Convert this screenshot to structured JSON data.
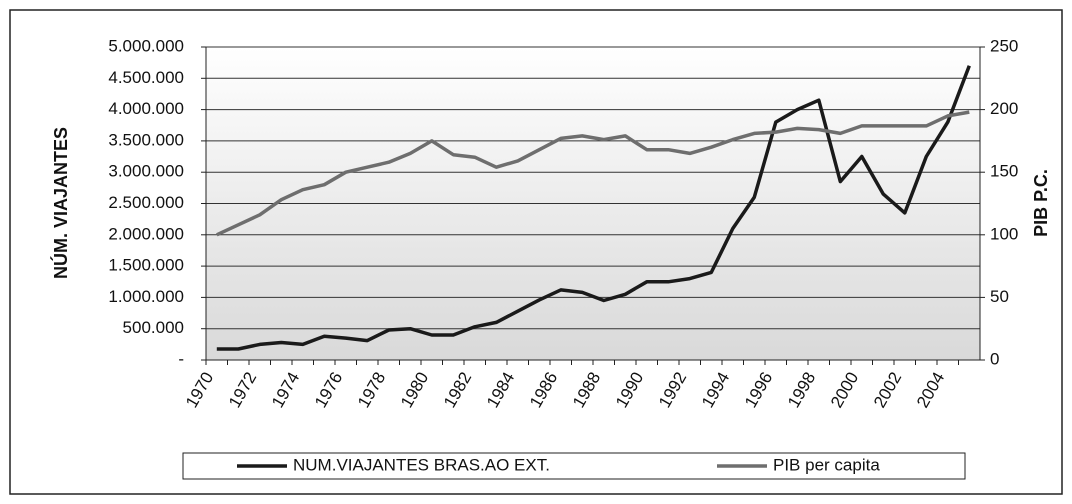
{
  "chart_data": {
    "type": "line",
    "categories": [
      "1970",
      null,
      "1972",
      null,
      "1974",
      null,
      "1976",
      null,
      "1978",
      null,
      "1980",
      null,
      "1982",
      null,
      "1984",
      null,
      "1986",
      null,
      "1988",
      null,
      "1990",
      null,
      "1992",
      null,
      "1994",
      null,
      "1996",
      null,
      "1998",
      null,
      "2000",
      null,
      "2002",
      null,
      "2004",
      null
    ],
    "series": [
      {
        "name": "NUM.VIAJANTES BRAS.AO EXT.",
        "color": "#1a1a1a",
        "values": [
          175000,
          175000,
          250000,
          280000,
          250000,
          380000,
          350000,
          310000,
          480000,
          500000,
          400000,
          400000,
          530000,
          600000,
          780000,
          960000,
          1120000,
          1080000,
          950000,
          1050000,
          1250000,
          1250000,
          1300000,
          1400000,
          2100000,
          2600000,
          3800000,
          4000000,
          4150000,
          2850000,
          3250000,
          2650000,
          2350000,
          3250000,
          3800000,
          4700000
        ]
      },
      {
        "name": "PIB per capita",
        "color": "#6e6e6e",
        "axis": "y2",
        "values": [
          100,
          108,
          116,
          128,
          136,
          140,
          150,
          154,
          158,
          165,
          175,
          164,
          162,
          154,
          159,
          168,
          177,
          179,
          176,
          179,
          168,
          168,
          165,
          170,
          176,
          181,
          182,
          185,
          184,
          181,
          187,
          187,
          187,
          187,
          195,
          198
        ]
      }
    ],
    "ylabel": "NÚM. VIAJANTES",
    "y2label": "PIB P.C.",
    "ylim": [
      0,
      5000000
    ],
    "yticks": [
      {
        "value": 0,
        "label": "-"
      },
      {
        "value": 500000,
        "label": "500.000"
      },
      {
        "value": 1000000,
        "label": "1.000.000"
      },
      {
        "value": 1500000,
        "label": "1.500.000"
      },
      {
        "value": 2000000,
        "label": "2.000.000"
      },
      {
        "value": 2500000,
        "label": "2.500.000"
      },
      {
        "value": 3000000,
        "label": "3.000.000"
      },
      {
        "value": 3500000,
        "label": "3.500.000"
      },
      {
        "value": 4000000,
        "label": "4.000.000"
      },
      {
        "value": 4500000,
        "label": "4.500.000"
      },
      {
        "value": 5000000,
        "label": "5.000.000"
      }
    ],
    "y2lim": [
      0,
      250
    ],
    "y2ticks": [
      0,
      50,
      100,
      150,
      200,
      250
    ],
    "grid": true,
    "legend": "bottom"
  }
}
